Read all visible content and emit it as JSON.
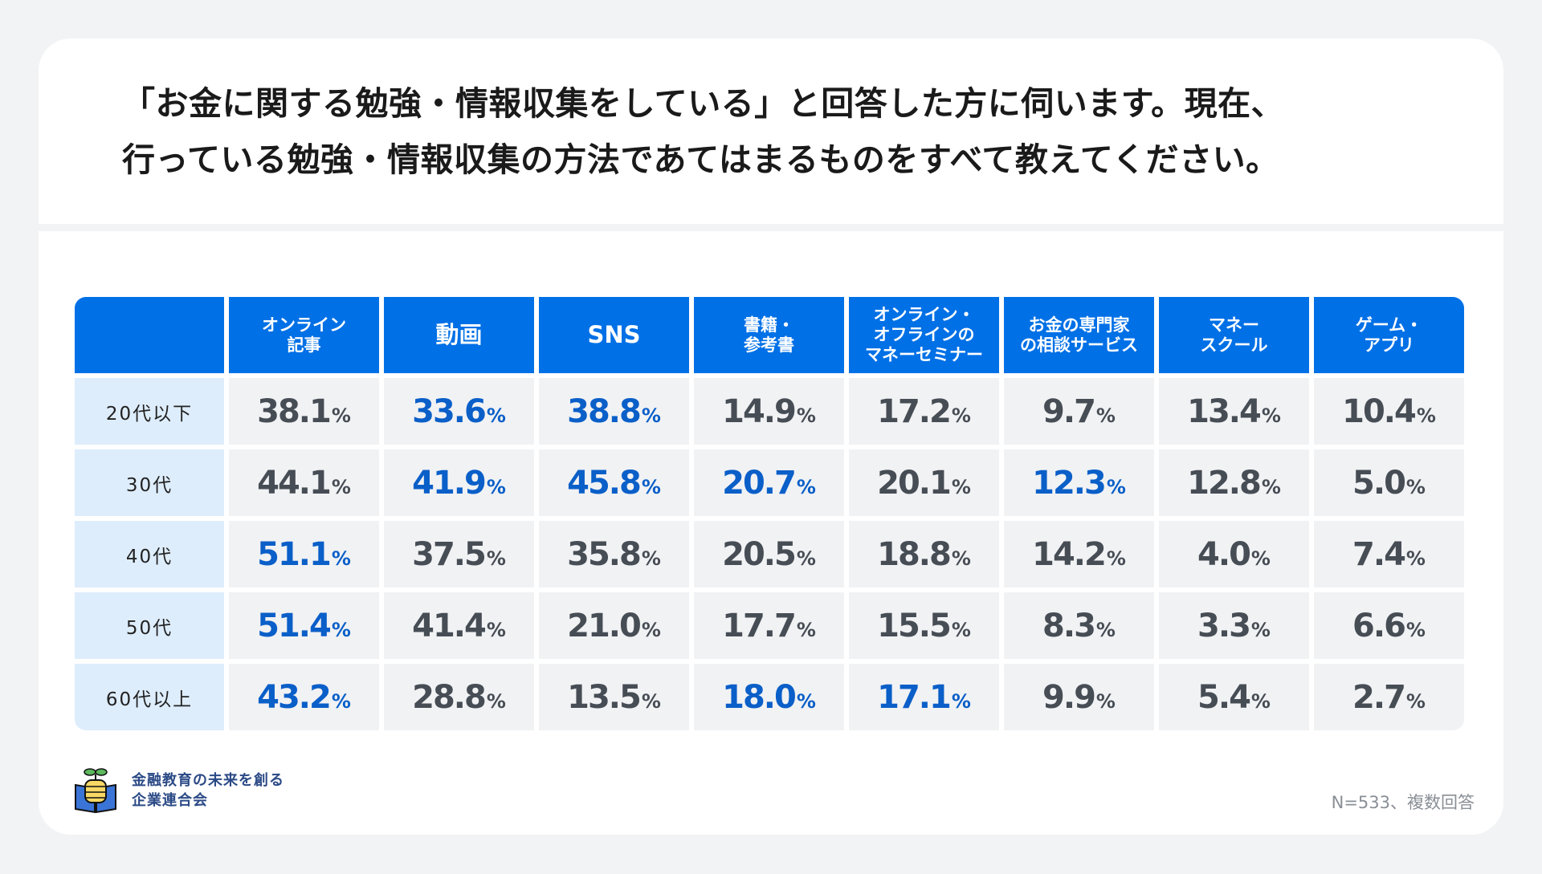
{
  "title_lines": [
    "「お金に関する勉強・情報収集をしている」と回答した方に伺います。現在、",
    "行っている勉強・情報収集の方法であてはまるものをすべて教えてください。"
  ],
  "colors": {
    "header": "#0070e6",
    "highlight": "#0a5fc8",
    "value": "#474d55",
    "row_label_bg": "#deedfc",
    "cell_bg": "#f1f2f4"
  },
  "columns": [
    [
      "オンライン",
      "記事"
    ],
    [
      "動画"
    ],
    [
      "SNS"
    ],
    [
      "書籍・",
      "参考書"
    ],
    [
      "オンライン・",
      "オフラインの",
      "マネーセミナー"
    ],
    [
      "お金の専門家",
      "の相談サービス"
    ],
    [
      "マネー",
      "スクール"
    ],
    [
      "ゲーム・",
      "アプリ"
    ]
  ],
  "percent_unit": "%",
  "rows": [
    {
      "label": "20代以下",
      "values": [
        "38.1",
        "33.6",
        "38.8",
        "14.9",
        "17.2",
        "9.7",
        "13.4",
        "10.4"
      ],
      "highlight": [
        false,
        true,
        true,
        false,
        false,
        false,
        false,
        false
      ]
    },
    {
      "label": "30代",
      "values": [
        "44.1",
        "41.9",
        "45.8",
        "20.7",
        "20.1",
        "12.3",
        "12.8",
        "5.0"
      ],
      "highlight": [
        false,
        true,
        true,
        true,
        false,
        true,
        false,
        false
      ]
    },
    {
      "label": "40代",
      "values": [
        "51.1",
        "37.5",
        "35.8",
        "20.5",
        "18.8",
        "14.2",
        "4.0",
        "7.4"
      ],
      "highlight": [
        true,
        false,
        false,
        false,
        false,
        false,
        false,
        false
      ]
    },
    {
      "label": "50代",
      "values": [
        "51.4",
        "41.4",
        "21.0",
        "17.7",
        "15.5",
        "8.3",
        "3.3",
        "6.6"
      ],
      "highlight": [
        true,
        false,
        false,
        false,
        false,
        false,
        false,
        false
      ]
    },
    {
      "label": "60代以上",
      "values": [
        "43.2",
        "28.8",
        "13.5",
        "18.0",
        "17.1",
        "9.9",
        "5.4",
        "2.7"
      ],
      "highlight": [
        true,
        false,
        false,
        true,
        true,
        false,
        false,
        false
      ]
    }
  ],
  "logo": {
    "line1": "金融教育の未来を創る",
    "line2": "企業連合会",
    "icon": "book-coins-sprout-icon"
  },
  "note": "N=533、複数回答"
}
